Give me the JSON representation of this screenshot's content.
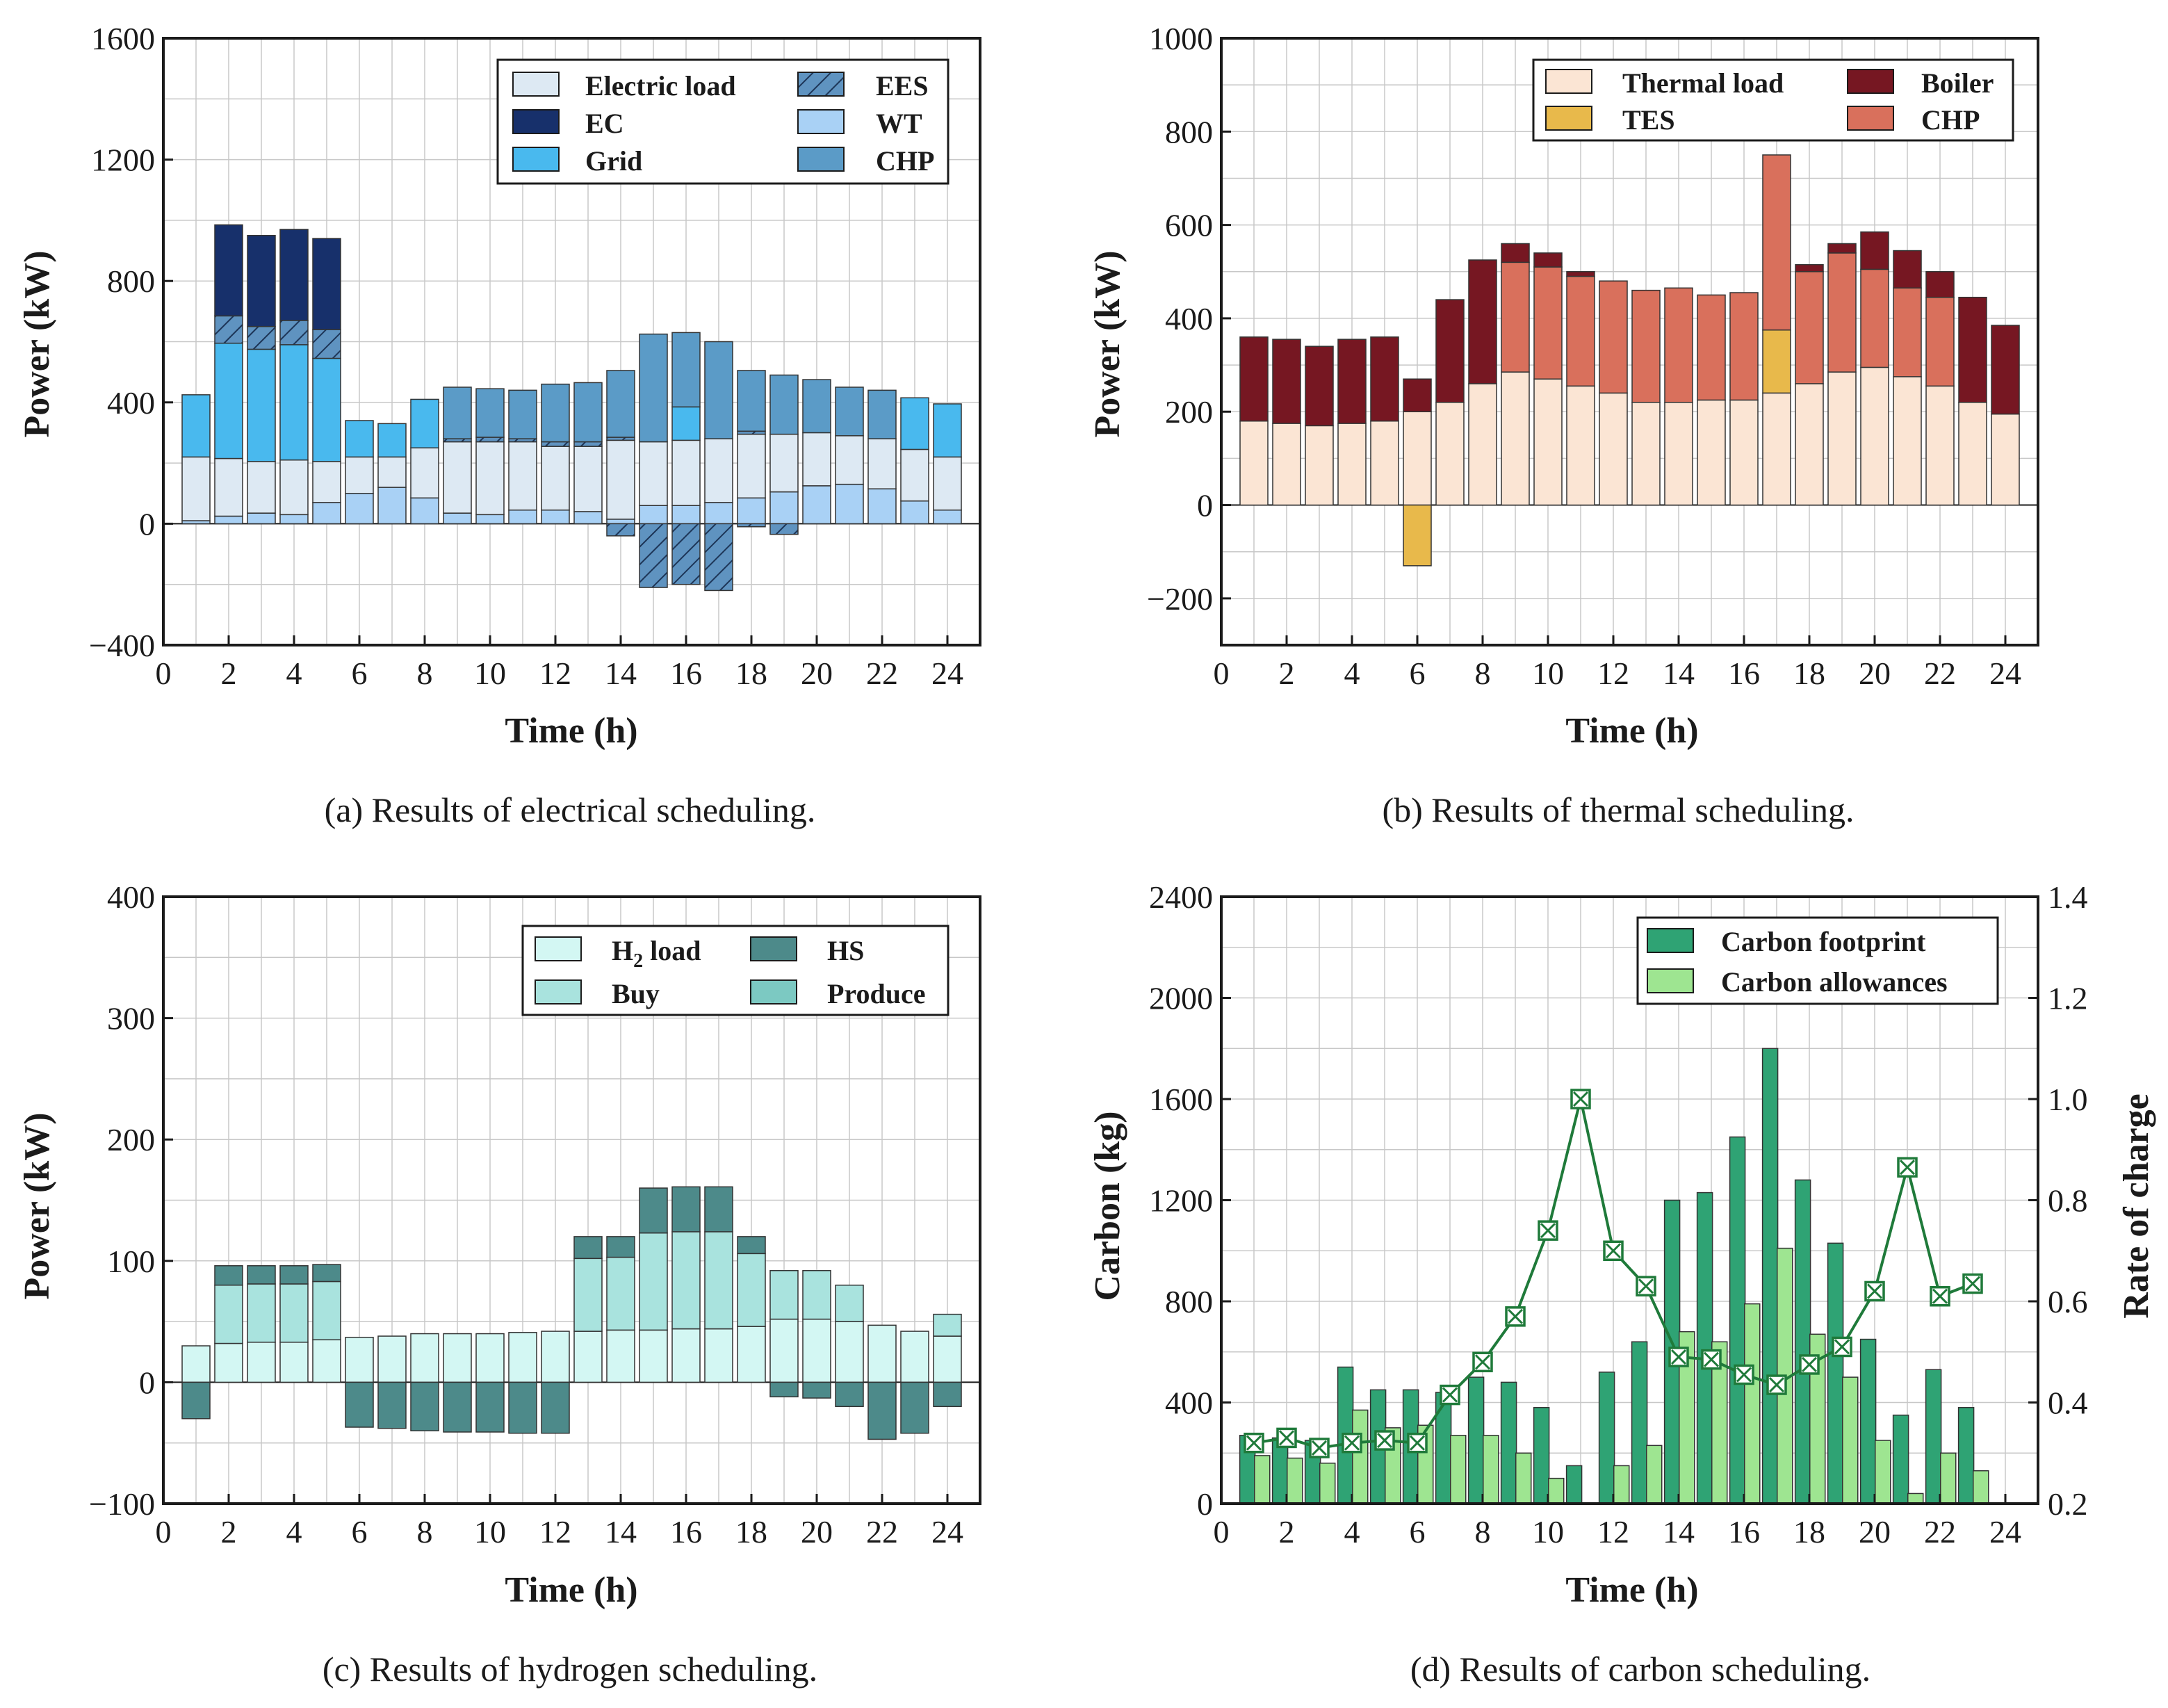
{
  "colors": {
    "electric_load": "#dde9f3",
    "ec": "#17306b",
    "grid": "#49b9ee",
    "wt": "#a9d1f5",
    "chp_e": "#5b9bc7",
    "ees": "#5f93c0",
    "thermal_load": "#fbe5d4",
    "boiler": "#761722",
    "tes": "#e8b94b",
    "chp_t": "#d9705c",
    "h2_load": "#d3f7f3",
    "hs": "#4d8a8a",
    "buy": "#a9e3de",
    "produce": "#7cc9c2",
    "carbon_footprint": "#2fa374",
    "carbon_allowances": "#9ee591",
    "soc_line": "#1f7a3a"
  },
  "chart_data": [
    {
      "id": "a",
      "type": "bar",
      "title": "",
      "caption": "(a) Results of electrical scheduling.",
      "xlabel": "Time (h)",
      "ylabel": "Power (kW)",
      "xlim": [
        0,
        25
      ],
      "ylim": [
        -400,
        1600
      ],
      "xticks": [
        "0",
        "2",
        "4",
        "6",
        "8",
        "10",
        "12",
        "14",
        "16",
        "18",
        "20",
        "22",
        "24"
      ],
      "yticks": [
        "−400",
        "0",
        "400",
        "800",
        "1200",
        "1600"
      ],
      "grid": true,
      "legend_position": "top-right",
      "legend": [
        {
          "label": "Electric load",
          "key": "electric_load",
          "hatch": false
        },
        {
          "label": "EES",
          "key": "ees",
          "hatch": true
        },
        {
          "label": "EC",
          "key": "ec",
          "hatch": false
        },
        {
          "label": "WT",
          "key": "wt",
          "hatch": false
        },
        {
          "label": "Grid",
          "key": "grid",
          "hatch": false
        },
        {
          "label": "CHP",
          "key": "chp_e",
          "hatch": false
        }
      ],
      "x": [
        1,
        2,
        3,
        4,
        5,
        6,
        7,
        8,
        9,
        10,
        11,
        12,
        13,
        14,
        15,
        16,
        17,
        18,
        19,
        20,
        21,
        22,
        23,
        24
      ],
      "positive_stacks": {
        "WT": [
          10,
          25,
          35,
          30,
          70,
          100,
          120,
          85,
          35,
          30,
          45,
          45,
          40,
          15,
          60,
          60,
          70,
          85,
          105,
          125,
          130,
          115,
          75,
          45
        ],
        "Electric load": [
          210,
          190,
          170,
          180,
          135,
          120,
          100,
          165,
          235,
          240,
          225,
          210,
          215,
          260,
          210,
          215,
          210,
          210,
          190,
          175,
          160,
          165,
          170,
          175
        ],
        "Grid": [
          205,
          0,
          0,
          0,
          0,
          120,
          110,
          160,
          0,
          0,
          0,
          0,
          0,
          0,
          0,
          110,
          0,
          0,
          0,
          0,
          0,
          0,
          170,
          175
        ],
        "CHP": [
          0,
          0,
          0,
          0,
          0,
          0,
          0,
          0,
          170,
          160,
          160,
          190,
          195,
          220,
          355,
          245,
          320,
          200,
          195,
          175,
          160,
          160,
          0,
          0
        ],
        "EC": [
          0,
          300,
          300,
          300,
          300,
          0,
          0,
          0,
          0,
          0,
          0,
          0,
          0,
          0,
          0,
          0,
          0,
          0,
          0,
          0,
          0,
          0,
          0,
          0
        ],
        "EES_pos": [
          0,
          0,
          0,
          0,
          0,
          0,
          0,
          0,
          0,
          0,
          0,
          0,
          0,
          0,
          0,
          0,
          0,
          0,
          0,
          0,
          0,
          0,
          0,
          0
        ]
      },
      "grid_band": [
        0,
        380,
        370,
        380,
        340,
        0,
        0,
        0,
        0,
        0,
        0,
        0,
        0,
        0,
        0,
        0,
        0,
        0,
        0,
        0,
        0,
        0,
        0,
        0
      ],
      "ees_band": [
        0,
        90,
        75,
        80,
        95,
        0,
        0,
        0,
        10,
        15,
        10,
        15,
        15,
        10,
        0,
        0,
        0,
        10,
        0,
        0,
        0,
        0,
        0,
        0
      ],
      "ees_negative": [
        0,
        0,
        0,
        0,
        0,
        0,
        0,
        0,
        0,
        0,
        0,
        0,
        0,
        -40,
        -210,
        -200,
        -220,
        -10,
        -35,
        0,
        0,
        0,
        0,
        0
      ]
    },
    {
      "id": "b",
      "type": "bar",
      "title": "",
      "caption": "(b) Results of thermal scheduling.",
      "xlabel": "Time (h)",
      "ylabel": "Power (kW)",
      "xlim": [
        0,
        25
      ],
      "ylim": [
        -300,
        1000
      ],
      "xticks": [
        "0",
        "2",
        "4",
        "6",
        "8",
        "10",
        "12",
        "14",
        "16",
        "18",
        "20",
        "22",
        "24"
      ],
      "yticks": [
        "−200",
        "0",
        "200",
        "400",
        "600",
        "800",
        "1000"
      ],
      "grid": true,
      "legend_position": "top-right",
      "legend": [
        {
          "label": "Thermal load",
          "key": "thermal_load"
        },
        {
          "label": "Boiler",
          "key": "boiler"
        },
        {
          "label": "TES",
          "key": "tes"
        },
        {
          "label": "CHP",
          "key": "chp_t"
        }
      ],
      "x": [
        1,
        2,
        3,
        4,
        5,
        6,
        7,
        8,
        9,
        10,
        11,
        12,
        13,
        14,
        15,
        16,
        17,
        18,
        19,
        20,
        21,
        22,
        23,
        24
      ],
      "thermal_load": [
        180,
        175,
        170,
        175,
        180,
        200,
        220,
        260,
        285,
        270,
        255,
        240,
        220,
        220,
        225,
        225,
        240,
        260,
        285,
        295,
        275,
        255,
        220,
        195
      ],
      "tes": [
        0,
        0,
        0,
        0,
        0,
        -130,
        0,
        0,
        0,
        0,
        0,
        0,
        0,
        0,
        0,
        0,
        135,
        0,
        0,
        0,
        0,
        0,
        0,
        0
      ],
      "chp": [
        0,
        0,
        0,
        0,
        0,
        0,
        0,
        0,
        235,
        240,
        235,
        240,
        240,
        245,
        225,
        230,
        375,
        240,
        255,
        210,
        190,
        190,
        0,
        0
      ],
      "boiler": [
        180,
        180,
        170,
        180,
        180,
        70,
        220,
        265,
        40,
        30,
        10,
        0,
        0,
        0,
        0,
        0,
        0,
        15,
        20,
        80,
        80,
        55,
        225,
        190
      ]
    },
    {
      "id": "c",
      "type": "bar",
      "title": "",
      "caption": "(c) Results of hydrogen scheduling.",
      "xlabel": "Time (h)",
      "ylabel": "Power (kW)",
      "xlim": [
        0,
        25
      ],
      "ylim": [
        -100,
        400
      ],
      "xticks": [
        "0",
        "2",
        "4",
        "6",
        "8",
        "10",
        "12",
        "14",
        "16",
        "18",
        "20",
        "22",
        "24"
      ],
      "yticks": [
        "−100",
        "0",
        "100",
        "200",
        "300",
        "400"
      ],
      "grid": true,
      "legend_position": "top-right",
      "legend": [
        {
          "label": "H",
          "sub": "2",
          "rest": " load",
          "key": "h2_load"
        },
        {
          "label": "HS",
          "key": "hs"
        },
        {
          "label": "Buy",
          "key": "buy"
        },
        {
          "label": "Produce",
          "key": "produce"
        }
      ],
      "x": [
        1,
        2,
        3,
        4,
        5,
        6,
        7,
        8,
        9,
        10,
        11,
        12,
        13,
        14,
        15,
        16,
        17,
        18,
        19,
        20,
        21,
        22,
        23,
        24
      ],
      "h2_load": [
        30,
        32,
        33,
        33,
        35,
        37,
        38,
        40,
        40,
        40,
        41,
        42,
        42,
        43,
        43,
        44,
        44,
        46,
        52,
        52,
        50,
        47,
        42,
        38
      ],
      "buy": [
        0,
        48,
        48,
        48,
        48,
        0,
        0,
        0,
        0,
        0,
        0,
        0,
        60,
        60,
        80,
        80,
        80,
        60,
        40,
        40,
        30,
        0,
        0,
        18
      ],
      "produce": [
        0,
        16,
        15,
        15,
        14,
        0,
        0,
        0,
        0,
        0,
        0,
        0,
        18,
        17,
        37,
        37,
        37,
        14,
        0,
        0,
        0,
        0,
        0,
        0
      ],
      "hs": [
        -30,
        0,
        0,
        0,
        0,
        -37,
        -38,
        -40,
        -41,
        -41,
        -42,
        -42,
        0,
        0,
        0,
        0,
        0,
        0,
        -12,
        -13,
        -20,
        -47,
        -42,
        -20
      ]
    },
    {
      "id": "d",
      "type": "bar",
      "title": "",
      "caption": "(d) Results of carbon scheduling.",
      "xlabel": "Time (h)",
      "ylabel": "Carbon (kg)",
      "y2label": "Rate of charge",
      "xlim": [
        0,
        25
      ],
      "ylim": [
        0,
        2400
      ],
      "y2lim": [
        0.2,
        1.4
      ],
      "xticks": [
        "0",
        "2",
        "4",
        "6",
        "8",
        "10",
        "12",
        "14",
        "16",
        "18",
        "20",
        "22",
        "24"
      ],
      "yticks": [
        "0",
        "400",
        "800",
        "1200",
        "1600",
        "2000",
        "2400"
      ],
      "y2ticks": [
        "0.2",
        "0.4",
        "0.6",
        "0.8",
        "1.0",
        "1.2",
        "1.4"
      ],
      "grid": true,
      "legend_position": "top-right",
      "legend": [
        {
          "label": "Carbon footprint",
          "key": "carbon_footprint"
        },
        {
          "label": "Carbon allowances",
          "key": "carbon_allowances"
        }
      ],
      "x": [
        1,
        2,
        3,
        4,
        5,
        6,
        7,
        8,
        9,
        10,
        11,
        12,
        13,
        14,
        15,
        16,
        17,
        18,
        19,
        20,
        21,
        22,
        23
      ],
      "series": [
        {
          "name": "Carbon footprint",
          "values": [
            270,
            260,
            250,
            540,
            450,
            450,
            440,
            500,
            480,
            380,
            150,
            520,
            640,
            1200,
            1230,
            1450,
            1800,
            1280,
            1030,
            650,
            350,
            530,
            380
          ]
        },
        {
          "name": "Carbon allowances",
          "values": [
            190,
            180,
            160,
            370,
            300,
            310,
            270,
            270,
            200,
            100,
            0,
            150,
            230,
            680,
            640,
            790,
            1010,
            670,
            500,
            250,
            40,
            200,
            130
          ]
        },
        {
          "name": "Rate of charge",
          "values": [
            0.32,
            0.33,
            0.31,
            0.32,
            0.325,
            0.32,
            0.415,
            0.48,
            0.57,
            0.74,
            1.0,
            0.7,
            0.63,
            0.49,
            0.485,
            0.455,
            0.435,
            0.475,
            0.51,
            0.62,
            0.865,
            0.61,
            0.635
          ]
        }
      ]
    }
  ]
}
